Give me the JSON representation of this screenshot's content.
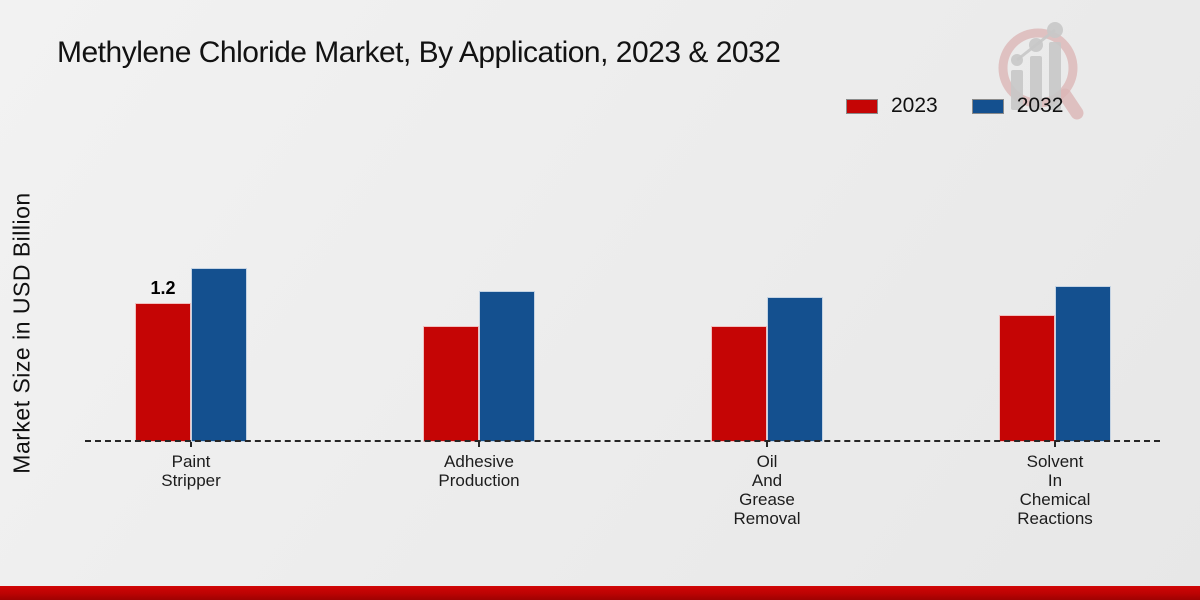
{
  "chart_data": {
    "type": "bar",
    "title": "Methylene Chloride Market, By Application, 2023 & 2032",
    "xlabel": "",
    "ylabel": "Market Size in USD Billion",
    "categories": [
      "Paint Stripper",
      "Adhesive Production",
      "Oil And Grease Removal",
      "Solvent In Chemical Reactions"
    ],
    "category_label_lines": [
      [
        "Paint",
        "Stripper"
      ],
      [
        "Adhesive",
        "Production"
      ],
      [
        "Oil",
        "And",
        "Grease",
        "Removal"
      ],
      [
        "Solvent",
        "In",
        "Chemical",
        "Reactions"
      ]
    ],
    "series": [
      {
        "name": "2023",
        "color": "#c50505",
        "values": [
          1.2,
          1.0,
          1.0,
          1.1
        ]
      },
      {
        "name": "2032",
        "color": "#14508f",
        "values": [
          1.5,
          1.3,
          1.25,
          1.35
        ]
      }
    ],
    "annotations": [
      {
        "series_index": 0,
        "category_index": 0,
        "text": "1.2"
      }
    ],
    "ylim": [
      0,
      1.6
    ],
    "grid": false,
    "y_axis_ticks_visible": false,
    "baseline_style": "dashed",
    "legend_position": "top-right"
  },
  "legend": {
    "items": [
      {
        "label": "2023",
        "color": "#c50505"
      },
      {
        "label": "2032",
        "color": "#14508f"
      }
    ]
  },
  "watermark": {
    "icon": "magnifier-bar-chart-logo"
  },
  "footer": {
    "accent_color": "#bb0303"
  }
}
